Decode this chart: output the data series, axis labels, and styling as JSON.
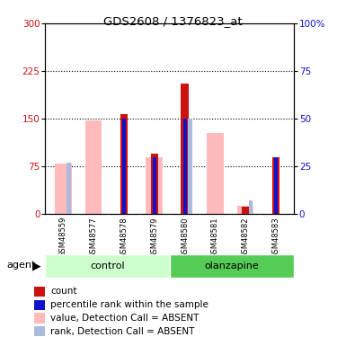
{
  "title": "GDS2608 / 1376823_at",
  "samples": [
    "GSM48559",
    "GSM48577",
    "GSM48578",
    "GSM48579",
    "GSM48580",
    "GSM48581",
    "GSM48582",
    "GSM48583"
  ],
  "count_values": [
    0,
    0,
    158,
    95,
    205,
    0,
    12,
    90
  ],
  "rank_values": [
    0,
    0,
    50,
    30,
    50,
    0,
    0,
    30
  ],
  "pink_bar_values": [
    80,
    147,
    0,
    90,
    0,
    128,
    13,
    0
  ],
  "blue_sq_values": [
    27,
    0,
    0,
    30,
    50,
    0,
    7,
    30
  ],
  "blue_sq_x_offset": [
    0,
    0,
    0,
    0,
    0,
    0,
    0,
    0
  ],
  "ylim_left": [
    0,
    300
  ],
  "ylim_right": [
    0,
    100
  ],
  "yticks_left": [
    0,
    75,
    150,
    225,
    300
  ],
  "yticks_right": [
    0,
    25,
    50,
    75,
    100
  ],
  "ytick_labels_left": [
    "0",
    "75",
    "150",
    "225",
    "300"
  ],
  "ytick_labels_right": [
    "0",
    "25",
    "50",
    "75",
    "100%"
  ],
  "color_red": "#cc1111",
  "color_blue": "#1111cc",
  "color_pink": "#ffbbbb",
  "color_lightblue": "#aabbdd",
  "color_control_light": "#ccffcc",
  "color_olanzapine_green": "#55cc55",
  "color_sample_bg": "#cccccc",
  "pink_bar_width": 0.55,
  "red_bar_width": 0.25,
  "blue_bar_width": 0.12
}
